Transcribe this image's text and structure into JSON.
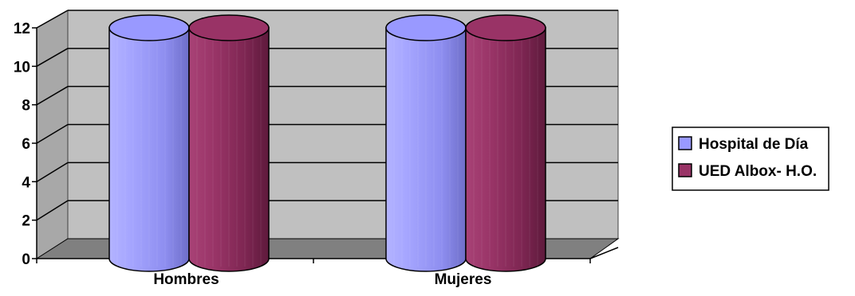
{
  "chart_data": {
    "type": "bar",
    "variant": "3d-cylinder",
    "categories": [
      "Hombres",
      "Mujeres"
    ],
    "series": [
      {
        "name": "Hospital de Día",
        "values": [
          12,
          12
        ],
        "color": "#9999FF"
      },
      {
        "name": "UED Albox- H.O.",
        "values": [
          12,
          12
        ],
        "color": "#993366"
      }
    ],
    "y_ticks": [
      "0",
      "2",
      "4",
      "6",
      "8",
      "10",
      "12"
    ],
    "ylim": [
      0,
      12
    ],
    "grid": true,
    "legend": "right",
    "colors": {
      "wall": "#C0C0C0",
      "floor": "#808080",
      "gridline": "#000000"
    }
  }
}
